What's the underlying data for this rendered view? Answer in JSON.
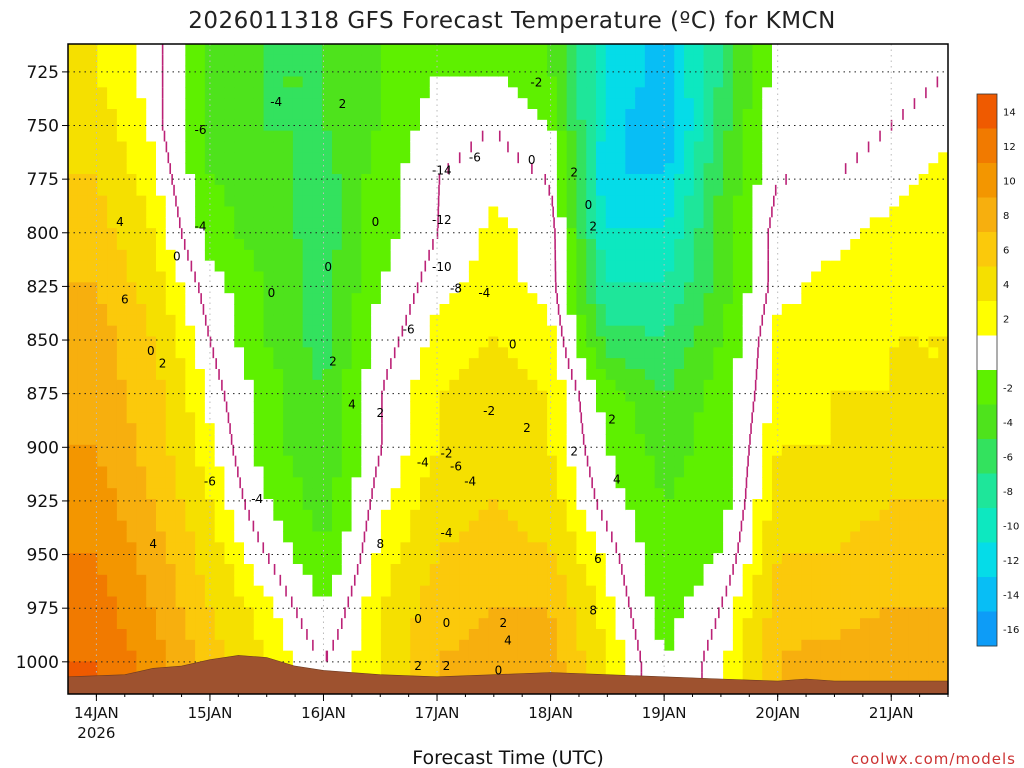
{
  "chart_data": {
    "type": "heatmap",
    "title": "2026011318 GFS Forecast Temperature (ºC) for KMCN",
    "xlabel": "Forecast Time (UTC)",
    "credit": "coolwx.com/models",
    "y_ticks": [
      "725",
      "750",
      "775",
      "800",
      "825",
      "850",
      "875",
      "900",
      "925",
      "950",
      "975",
      "1000"
    ],
    "y_unit": "hPa",
    "y_range": [
      712,
      1015
    ],
    "x_ticks": [
      "14JAN",
      "15JAN",
      "16JAN",
      "17JAN",
      "18JAN",
      "19JAN",
      "20JAN",
      "21JAN"
    ],
    "x_year": "2026",
    "colorbar_ticks": [
      "14",
      "12",
      "10",
      "8",
      "6",
      "4",
      "2",
      "-2",
      "-4",
      "-6",
      "-8",
      "-10",
      "-12",
      "-14",
      "-16"
    ],
    "colorbar_colors": {
      "-16": "#0d9cf7",
      "-14": "#08bef5",
      "-12": "#05dce8",
      "-10": "#0de8c0",
      "-8": "#1ee69a",
      "-6": "#33e25e",
      "-4": "#4ee31c",
      "-2": "#5ef000",
      "0": "#ffffff",
      "2": "#ffff00",
      "4": "#f5e000",
      "6": "#fbc90b",
      "8": "#f7af0e",
      "10": "#f39600",
      "12": "#f17a00",
      "14": "#ef5a00"
    },
    "terrain_color": "#9e522f",
    "zero_contour_color": "#bb2277",
    "grid": true,
    "x_hours": [
      0,
      12,
      24,
      36,
      48,
      60,
      72,
      84,
      96,
      108,
      120,
      132,
      144,
      156,
      168,
      180
    ],
    "p_levels": [
      725,
      750,
      775,
      800,
      825,
      850,
      875,
      900,
      925,
      950,
      975,
      1000
    ],
    "temperature": [
      [
        3,
        4,
        5,
        6,
        7,
        8,
        8,
        9,
        10,
        11,
        12,
        13
      ],
      [
        1,
        1,
        2,
        3,
        4,
        5,
        6,
        6,
        7,
        8,
        9,
        10
      ],
      [
        -5,
        -5,
        -4,
        -3,
        -1,
        0,
        1,
        2,
        3,
        4,
        5,
        6
      ],
      [
        -6,
        -6,
        -5,
        -5,
        -4,
        -4,
        -3,
        -3,
        -2,
        0,
        2,
        3
      ],
      [
        -6,
        -6,
        -7,
        -7,
        -7,
        -7,
        -6,
        -6,
        -5,
        -4,
        -2,
        0
      ],
      [
        -4,
        -4,
        -3,
        -3,
        -2,
        -1,
        0,
        0,
        1,
        2,
        3,
        3
      ],
      [
        -2,
        -1,
        0,
        0,
        1,
        2,
        3,
        3,
        4,
        5,
        6,
        7
      ],
      [
        -2,
        0,
        1,
        2,
        2,
        3,
        4,
        4,
        5,
        6,
        7,
        8
      ],
      [
        -4,
        -2,
        0,
        1,
        1,
        2,
        3,
        3,
        4,
        5,
        7,
        8
      ],
      [
        -12,
        -13,
        -14,
        -12,
        -10,
        -7,
        -3,
        -2,
        -1,
        1,
        2,
        3
      ],
      [
        -15,
        -16,
        -14,
        -12,
        -10,
        -8,
        -6,
        -5,
        -4,
        -4,
        -3,
        -2
      ],
      [
        -8,
        -7,
        -6,
        -5,
        -5,
        -4,
        -3,
        -3,
        -3,
        -2,
        0,
        1
      ],
      [
        -1,
        0,
        0,
        1,
        1,
        2,
        2,
        3,
        4,
        5,
        6,
        7
      ],
      [
        -2,
        -1,
        0,
        1,
        2,
        2,
        3,
        3,
        4,
        5,
        6,
        8
      ],
      [
        -1,
        0,
        1,
        2,
        2,
        3,
        3,
        4,
        5,
        6,
        7,
        9
      ],
      [
        0,
        1,
        2,
        2,
        3,
        3,
        3,
        4,
        5,
        6,
        7,
        8
      ]
    ],
    "contour_labels": [
      {
        "t": 4,
        "h": 5,
        "p": 795
      },
      {
        "t": 6,
        "h": 6,
        "p": 831
      },
      {
        "t": 0,
        "h": 11.5,
        "p": 855
      },
      {
        "t": 2,
        "h": 14,
        "p": 861
      },
      {
        "t": 4,
        "h": 12,
        "p": 945
      },
      {
        "t": -6,
        "h": 22,
        "p": 752
      },
      {
        "t": -4,
        "h": 22,
        "p": 797
      },
      {
        "t": -6,
        "h": 24,
        "p": 916
      },
      {
        "t": -4,
        "h": 34,
        "p": 924
      },
      {
        "t": 0,
        "h": 17,
        "p": 811
      },
      {
        "t": 0,
        "h": 37,
        "p": 828
      },
      {
        "t": -4,
        "h": 38,
        "p": 739
      },
      {
        "t": 2,
        "h": 52,
        "p": 740
      },
      {
        "t": 2,
        "h": 50,
        "p": 860
      },
      {
        "t": 4,
        "h": 54,
        "p": 880
      },
      {
        "t": 2,
        "h": 60,
        "p": 884
      },
      {
        "t": 0,
        "h": 59,
        "p": 795
      },
      {
        "t": 0,
        "h": 49,
        "p": 816
      },
      {
        "t": 8,
        "h": 60,
        "p": 945
      },
      {
        "t": -14,
        "h": 73,
        "p": 771
      },
      {
        "t": -12,
        "h": 73,
        "p": 794
      },
      {
        "t": -10,
        "h": 73,
        "p": 816
      },
      {
        "t": -8,
        "h": 76,
        "p": 826
      },
      {
        "t": -6,
        "h": 66,
        "p": 845
      },
      {
        "t": -6,
        "h": 80,
        "p": 765
      },
      {
        "t": -4,
        "h": 82,
        "p": 828
      },
      {
        "t": -2,
        "h": 83,
        "p": 883
      },
      {
        "t": -4,
        "h": 69,
        "p": 907
      },
      {
        "t": -2,
        "h": 74,
        "p": 903
      },
      {
        "t": -6,
        "h": 76,
        "p": 909
      },
      {
        "t": -4,
        "h": 79,
        "p": 916
      },
      {
        "t": -4,
        "h": 74,
        "p": 940
      },
      {
        "t": 0,
        "h": 68,
        "p": 980
      },
      {
        "t": 0,
        "h": 74,
        "p": 982
      },
      {
        "t": 2,
        "h": 68,
        "p": 1002
      },
      {
        "t": 2,
        "h": 74,
        "p": 1002
      },
      {
        "t": 0,
        "h": 85,
        "p": 1004
      },
      {
        "t": 2,
        "h": 86,
        "p": 982
      },
      {
        "t": 4,
        "h": 87,
        "p": 990
      },
      {
        "t": 0,
        "h": 88,
        "p": 852
      },
      {
        "t": 2,
        "h": 91,
        "p": 891
      },
      {
        "t": 0,
        "h": 92,
        "p": 766
      },
      {
        "t": -2,
        "h": 93,
        "p": 730
      },
      {
        "t": 2,
        "h": 101,
        "p": 772
      },
      {
        "t": 0,
        "h": 104,
        "p": 787
      },
      {
        "t": 2,
        "h": 105,
        "p": 797
      },
      {
        "t": 2,
        "h": 101,
        "p": 902
      },
      {
        "t": 2,
        "h": 109,
        "p": 887
      },
      {
        "t": 4,
        "h": 110,
        "p": 915
      },
      {
        "t": 6,
        "h": 106,
        "p": 952
      },
      {
        "t": 8,
        "h": 105,
        "p": 976
      }
    ]
  }
}
